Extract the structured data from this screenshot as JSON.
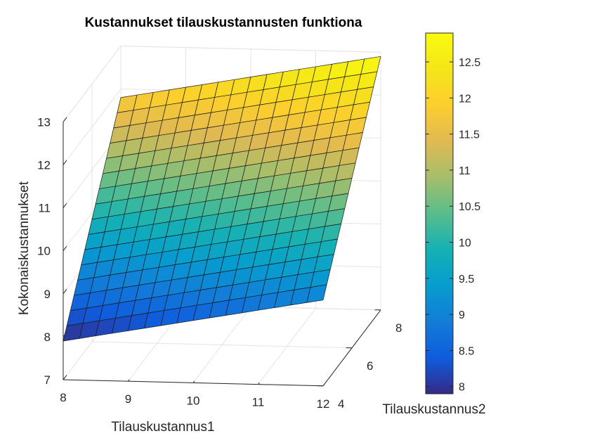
{
  "chart_data": {
    "type": "surface",
    "title": "Kustannukset tilauskustannusten funktiona",
    "xlabel": "Tilauskustannus1",
    "ylabel": "Tilauskustannus2",
    "zlabel": "Kokonaiskustannukset",
    "xlim": [
      8,
      12
    ],
    "ylim": [
      4,
      8
    ],
    "zlim": [
      7,
      13
    ],
    "x_ticks": [
      "8",
      "9",
      "10",
      "11",
      "12"
    ],
    "y_ticks": [
      "4",
      "6",
      "8"
    ],
    "z_ticks": [
      "7",
      "8",
      "9",
      "10",
      "11",
      "12",
      "13"
    ],
    "grid": true,
    "colormap": "parula",
    "surface": {
      "x_range": [
        8,
        12
      ],
      "y_range": [
        4,
        8
      ],
      "grid_size": [
        17,
        17
      ],
      "z_corners": {
        "x8_y4": 7.9,
        "x12_y4": 9.0,
        "x8_y8": 11.8,
        "x12_y8": 12.9
      }
    },
    "colorbar": {
      "range": [
        7.9,
        12.9
      ],
      "ticks": [
        "8",
        "8.5",
        "9",
        "9.5",
        "10",
        "10.5",
        "11",
        "11.5",
        "12",
        "12.5"
      ]
    }
  }
}
